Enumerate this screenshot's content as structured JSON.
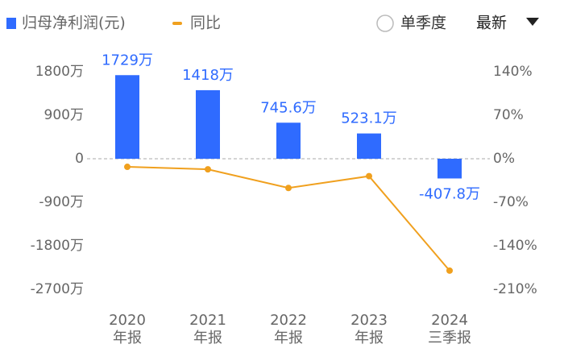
{
  "chart_data": {
    "type": "bar_line",
    "categories": [
      [
        "2020",
        "年报"
      ],
      [
        "2021",
        "年报"
      ],
      [
        "2022",
        "年报"
      ],
      [
        "2023",
        "年报"
      ],
      [
        "2024",
        "三季报"
      ]
    ],
    "series": [
      {
        "name": "归母净利润(元)",
        "color": "#2f6bff",
        "values": [
          1729,
          1418,
          745.6,
          523.1,
          -407.8
        ],
        "value_labels": [
          "1729万",
          "1418万",
          "745.6万",
          "523.1万",
          "-407.8万"
        ]
      },
      {
        "name": "同比",
        "color": "#f0a01e",
        "axis": "y2",
        "values": [
          -13,
          -17,
          -47,
          -28,
          -180
        ]
      }
    ],
    "ylim": [
      -2700,
      1800
    ],
    "yticks": [
      {
        "value": 1800,
        "label": "1800万"
      },
      {
        "value": 900,
        "label": "900万"
      },
      0,
      {
        "value": -900,
        "label": "-900万"
      },
      {
        "value": -1800,
        "label": "-1800万"
      },
      {
        "value": -2700,
        "label": "-2700万"
      }
    ],
    "y2lim": [
      -210,
      140
    ],
    "y2ticks": [
      {
        "value": 140,
        "label": "140%"
      },
      {
        "value": 70,
        "label": "70%"
      },
      {
        "value": 0,
        "label": "0%"
      },
      {
        "value": -70,
        "label": "-70%"
      },
      {
        "value": -140,
        "label": "-140%"
      },
      {
        "value": -210,
        "label": "-210%"
      }
    ]
  },
  "controls": {
    "toggle": "单季度",
    "period": "最新"
  }
}
